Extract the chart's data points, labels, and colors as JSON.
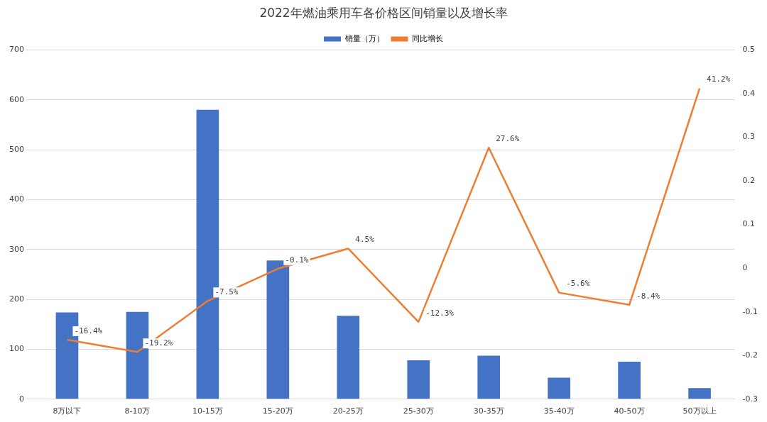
{
  "chart_data": {
    "type": "bar",
    "title": "2022年燃油乘用车各价格区间销量以及增长率",
    "categories": [
      "8万以下",
      "8-10万",
      "10-15万",
      "15-20万",
      "20-25万",
      "25-30万",
      "30-35万",
      "35-40万",
      "40-50万",
      "50万以上"
    ],
    "series": [
      {
        "name": "销量（万）",
        "color": "#4472c4",
        "values": [
          174,
          175,
          580,
          278,
          167,
          78,
          87,
          43,
          75,
          22
        ]
      },
      {
        "name": "同比增长",
        "type": "line",
        "axis": "y2",
        "color": "#ed7d31",
        "values": [
          -0.164,
          -0.192,
          -0.075,
          -0.001,
          0.045,
          -0.123,
          0.276,
          -0.056,
          -0.084,
          0.412
        ],
        "value_labels": [
          "-16.4%",
          "-19.2%",
          "-7.5%",
          "-0.1%",
          "4.5%",
          "-12.3%",
          "27.6%",
          "-5.6%",
          "-8.4%",
          "41.2%"
        ]
      }
    ],
    "ylim": [
      0,
      700
    ],
    "yticks": [
      0,
      100,
      200,
      300,
      400,
      500,
      600,
      700
    ],
    "y2lim": [
      -0.3,
      0.5
    ],
    "y2ticks": [
      -0.3,
      -0.2,
      -0.1,
      0,
      0.1,
      0.2,
      0.3,
      0.4,
      0.5
    ],
    "grid": "y",
    "legend": "top",
    "marker": "none"
  }
}
